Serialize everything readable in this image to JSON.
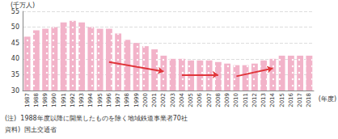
{
  "chart_data": {
    "type": "bar",
    "y_label": "(千万人)",
    "x_label": "(年度)",
    "categories": [
      "1987",
      "1988",
      "1989",
      "1990",
      "1991",
      "1992",
      "1993",
      "1994",
      "1995",
      "1996",
      "1997",
      "1998",
      "1999",
      "2000",
      "2001",
      "2002",
      "2003",
      "2004",
      "2005",
      "2006",
      "2007",
      "2008",
      "2009",
      "2010",
      "2011",
      "2012",
      "2013",
      "2014",
      "2015",
      "2016",
      "2017",
      "2018"
    ],
    "values": [
      47,
      49,
      49.5,
      50,
      51.5,
      52,
      51.5,
      50,
      49.5,
      49.5,
      48,
      46,
      45,
      44,
      43,
      41,
      40,
      40,
      39.5,
      39.5,
      39.5,
      39,
      38.5,
      38,
      38,
      38.5,
      39.5,
      40,
      41,
      41,
      41,
      41
    ],
    "color": "#f2b3c9",
    "ylim": [
      30,
      55
    ],
    "yticks": [
      30,
      35,
      40,
      45,
      50,
      55
    ],
    "grid": true,
    "arrows": [
      {
        "from": [
          "1996",
          39
        ],
        "to": [
          "2002",
          36
        ]
      },
      {
        "from": [
          "2004",
          35
        ],
        "to": [
          "2008",
          35
        ]
      },
      {
        "from": [
          "2010",
          34.5
        ],
        "to": [
          "2014",
          37
        ]
      }
    ],
    "notes": [
      "(注)  1988年度以降に開業したものを除く地域鉄道事業者70社",
      "資料)  国土交通省"
    ]
  }
}
